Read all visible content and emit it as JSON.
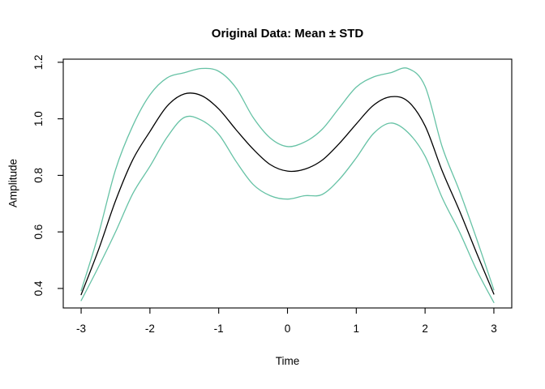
{
  "figure": {
    "title": "Original Data: Mean ± STD",
    "xlabel": "Time",
    "ylabel": "Amplitude"
  },
  "chart_data": {
    "type": "line",
    "title": "Original Data: Mean ± STD",
    "xlabel": "Time",
    "ylabel": "Amplitude",
    "x_ticks": [
      -3,
      -2,
      -1,
      0,
      1,
      2,
      3
    ],
    "x_tick_labels": [
      "-3",
      "-2",
      "-1",
      "0",
      "1",
      "2",
      "3"
    ],
    "y_ticks": [
      0.4,
      0.6,
      0.8,
      1.0,
      1.2
    ],
    "y_tick_labels": [
      "0.4",
      "0.6",
      "0.8",
      "1.0",
      "1.2"
    ],
    "xlim": [
      -3.26,
      3.26
    ],
    "ylim": [
      0.331,
      1.211
    ],
    "grid": false,
    "legend": null,
    "frame": "box",
    "axis_color": "#000000",
    "background_color": "#ffffff",
    "x": [
      -3,
      -2.75,
      -2.5,
      -2.25,
      -2,
      -1.75,
      -1.5,
      -1.25,
      -1,
      -0.75,
      -0.5,
      -0.25,
      0,
      0.25,
      0.5,
      0.75,
      1,
      1.25,
      1.5,
      1.75,
      2,
      2.25,
      2.5,
      2.75,
      3
    ],
    "series": [
      {
        "name": "mean_plus_std",
        "label": "Mean + STD",
        "color": "#66C2A5",
        "values": [
          0.392,
          0.59,
          0.82,
          0.975,
          1.085,
          1.145,
          1.163,
          1.178,
          1.168,
          1.11,
          1.005,
          0.932,
          0.902,
          0.918,
          0.962,
          1.038,
          1.112,
          1.148,
          1.163,
          1.178,
          1.115,
          0.9,
          0.745,
          0.575,
          0.395
        ]
      },
      {
        "name": "mean_minus_std",
        "label": "Mean − STD",
        "color": "#66C2A5",
        "values": [
          0.357,
          0.475,
          0.6,
          0.735,
          0.832,
          0.935,
          1.005,
          0.995,
          0.945,
          0.85,
          0.768,
          0.728,
          0.716,
          0.728,
          0.732,
          0.785,
          0.862,
          0.948,
          0.985,
          0.952,
          0.868,
          0.72,
          0.6,
          0.465,
          0.35
        ]
      },
      {
        "name": "mean",
        "label": "Mean",
        "color": "#000000",
        "values": [
          0.378,
          0.535,
          0.71,
          0.855,
          0.955,
          1.045,
          1.088,
          1.082,
          1.035,
          0.962,
          0.893,
          0.838,
          0.815,
          0.822,
          0.853,
          0.912,
          0.982,
          1.048,
          1.078,
          1.062,
          0.975,
          0.815,
          0.675,
          0.525,
          0.38
        ]
      }
    ]
  }
}
